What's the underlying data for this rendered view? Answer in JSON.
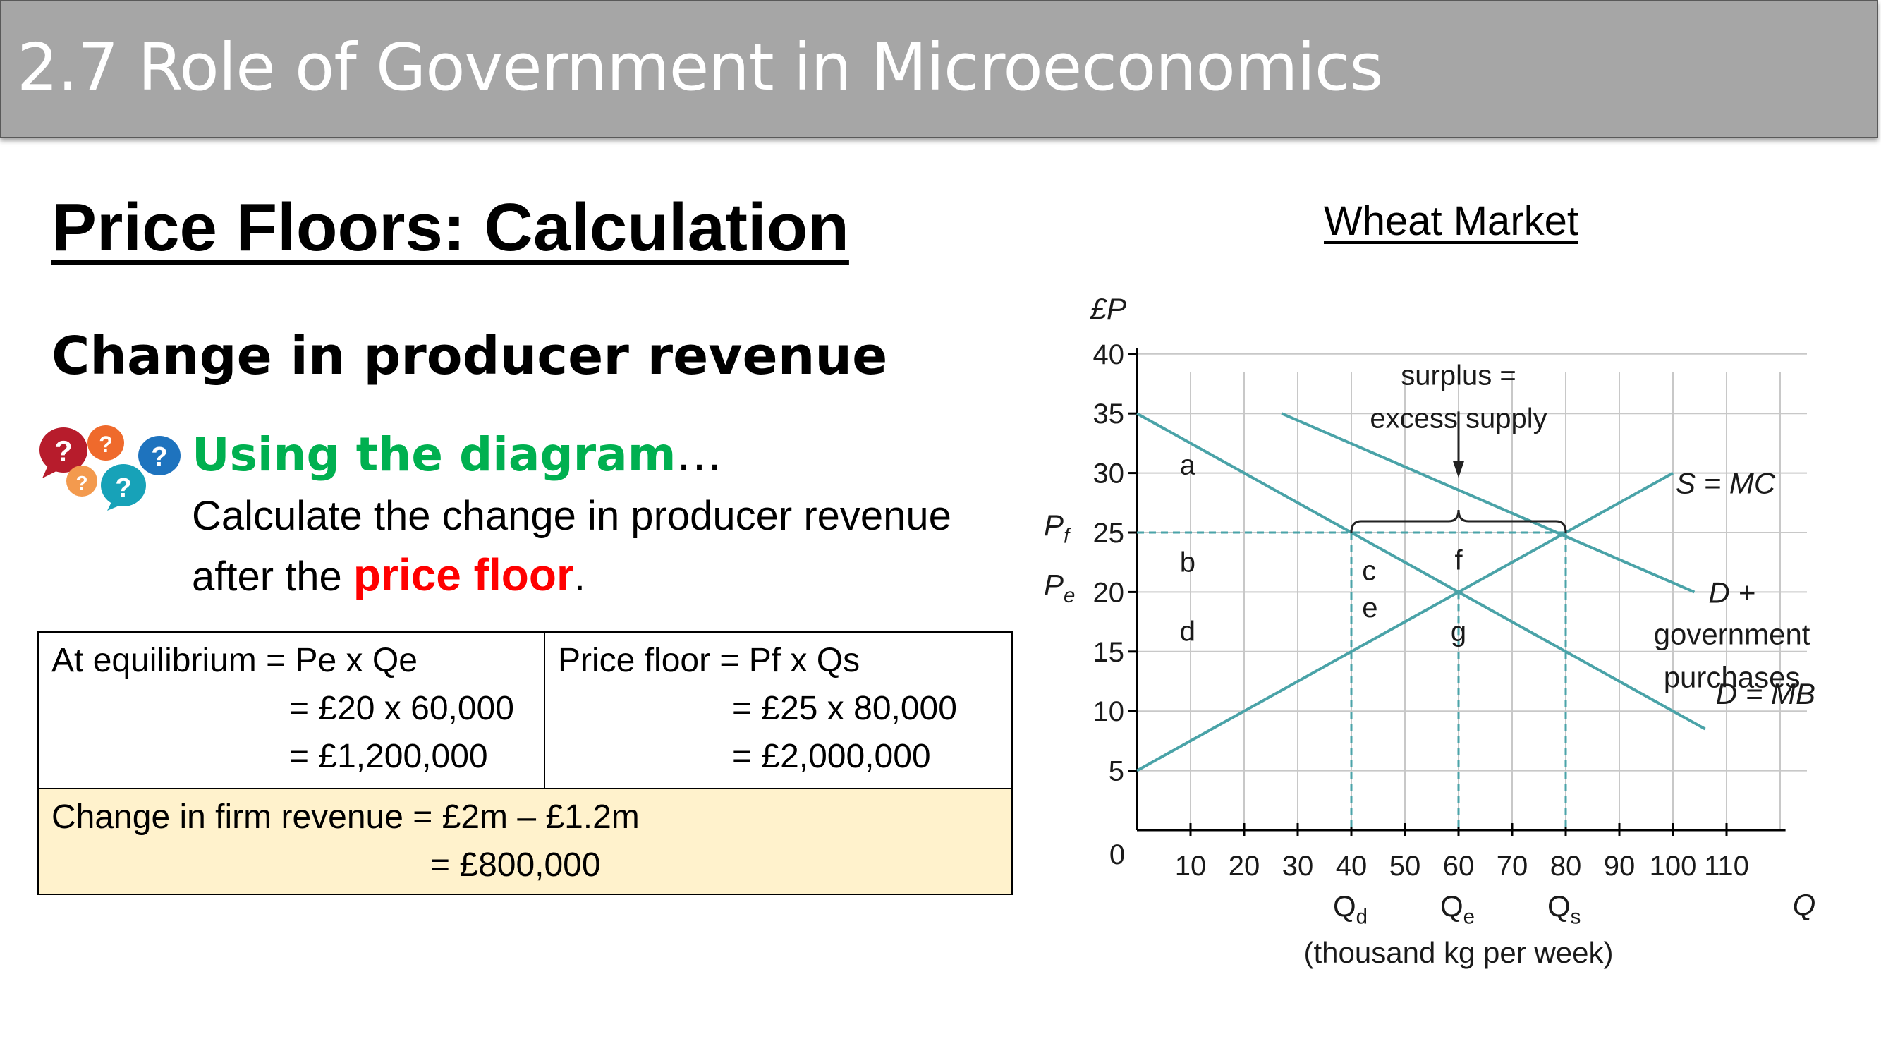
{
  "header": {
    "title": "2.7 Role of Government in Microeconomics"
  },
  "slide": {
    "title": "Price Floors: Calculation",
    "subtitle": "Change in producer revenue",
    "prompt": {
      "heading": "Using the diagram",
      "heading_suffix": "…",
      "line1": "Calculate the change in producer revenue",
      "line2_prefix": "after the ",
      "line2_highlight": "price floor",
      "line2_suffix": "."
    },
    "icon": "question-bubbles-icon"
  },
  "table": {
    "equilibrium": {
      "line1": "At equilibrium = Pe x Qe",
      "line2": "= £20 x 60,000",
      "line3": "= £1,200,000"
    },
    "price_floor": {
      "line1": "Price floor = Pf x Qs",
      "line2": "= £25 x 80,000",
      "line3": "= £2,000,000"
    },
    "change": {
      "line1": "Change in firm revenue = £2m – £1.2m",
      "line2": "= £800,000"
    },
    "change_bg": "#fff2cc"
  },
  "chart": {
    "title": "Wheat Market",
    "y_axis_label": "£P",
    "x_axis_label": "Q",
    "x_unit": "(thousand kg per week)",
    "origin": "0",
    "y_ticks": [
      "5",
      "10",
      "15",
      "20",
      "25",
      "30",
      "35",
      "40"
    ],
    "x_ticks": [
      "10",
      "20",
      "30",
      "40",
      "50",
      "60",
      "70",
      "80",
      "90",
      "100",
      "110"
    ],
    "pf_label": "P",
    "pf_sub": "f",
    "pe_label": "P",
    "pe_sub": "e",
    "qd_label": "Q",
    "qd_sub": "d",
    "qe_label": "Q",
    "qe_sub": "e",
    "qs_label": "Q",
    "qs_sub": "s",
    "surplus_line1": "surplus =",
    "surplus_line2": "excess supply",
    "supply_label": "S = MC",
    "demand_label": "D = MB",
    "gov_demand_line1": "D +",
    "gov_demand_line2": "government",
    "gov_demand_line3": "purchases",
    "areas": {
      "a": "a",
      "b": "b",
      "c": "c",
      "d": "d",
      "e": "e",
      "f": "f",
      "g": "g"
    },
    "line_color": "#4aa3a8",
    "grid_color": "#c8c8c8"
  },
  "chart_data": {
    "type": "line",
    "title": "Wheat Market",
    "xlabel": "Q",
    "ylabel": "£P",
    "xlim": [
      0,
      120
    ],
    "ylim": [
      0,
      40
    ],
    "grid": true,
    "series": [
      {
        "name": "S = MC",
        "x": [
          0,
          100
        ],
        "y": [
          5,
          30
        ]
      },
      {
        "name": "D = MB",
        "x": [
          0,
          106
        ],
        "y": [
          35,
          8.5
        ]
      },
      {
        "name": "D + government purchases",
        "x": [
          27,
          104
        ],
        "y": [
          35,
          20
        ]
      }
    ],
    "reference_lines": {
      "Pf": 25,
      "Pe": 20,
      "Qd": 40,
      "Qe": 60,
      "Qs": 80
    }
  }
}
